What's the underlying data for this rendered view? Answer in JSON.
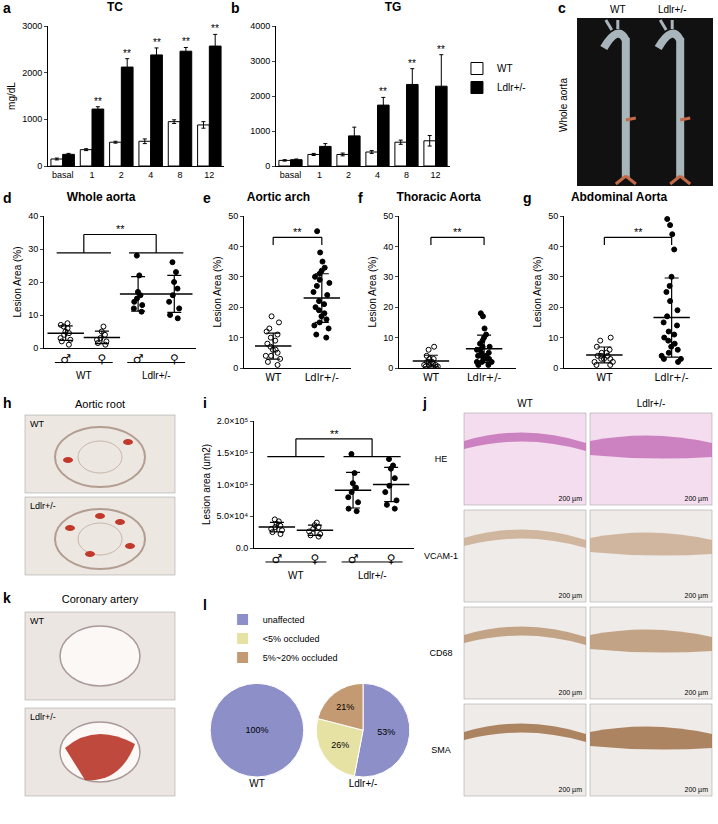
{
  "chart_data": [
    {
      "panel": "a",
      "type": "bar",
      "title": "TC",
      "y_label": "mg/dL",
      "grid": false,
      "categories": [
        "basal",
        "1",
        "2",
        "4",
        "8",
        "12"
      ],
      "ylim": [
        0,
        3000
      ],
      "yticks": [
        0,
        1000,
        2000,
        3000
      ],
      "series": [
        {
          "name": "WT",
          "color": "#ffffff",
          "values": [
            150,
            350,
            510,
            530,
            950,
            880
          ],
          "errors": [
            20,
            20,
            20,
            50,
            40,
            70
          ]
        },
        {
          "name": "Ldlr+/-",
          "color": "#000000",
          "values": [
            250,
            1220,
            2120,
            2380,
            2460,
            2570
          ],
          "errors": [
            20,
            50,
            180,
            150,
            80,
            250
          ]
        }
      ],
      "annotations": [
        {
          "category": "1",
          "series": "Ldlr+/-",
          "text": "**"
        },
        {
          "category": "2",
          "series": "Ldlr+/-",
          "text": "**"
        },
        {
          "category": "4",
          "series": "Ldlr+/-",
          "text": "**"
        },
        {
          "category": "8",
          "series": "Ldlr+/-",
          "text": "**"
        },
        {
          "category": "12",
          "series": "Ldlr+/-",
          "text": "**"
        }
      ]
    },
    {
      "panel": "b",
      "type": "bar",
      "title": "TG",
      "legend": "right",
      "grid": false,
      "categories": [
        "basal",
        "1",
        "2",
        "4",
        "8",
        "12"
      ],
      "ylim": [
        0,
        4000
      ],
      "yticks": [
        0,
        1000,
        2000,
        3000,
        4000
      ],
      "series": [
        {
          "name": "WT",
          "color": "#ffffff",
          "values": [
            160,
            330,
            330,
            400,
            680,
            720
          ],
          "errors": [
            20,
            30,
            40,
            40,
            60,
            150
          ]
        },
        {
          "name": "Ldlr+/-",
          "color": "#000000",
          "values": [
            180,
            560,
            860,
            1740,
            2330,
            2280
          ],
          "errors": [
            20,
            80,
            250,
            220,
            450,
            900
          ]
        }
      ],
      "annotations": [
        {
          "category": "4",
          "series": "Ldlr+/-",
          "text": "**"
        },
        {
          "category": "8",
          "series": "Ldlr+/-",
          "text": "**"
        },
        {
          "category": "12",
          "series": "Ldlr+/-",
          "text": "**"
        }
      ]
    },
    {
      "panel": "d",
      "type": "scatter",
      "title": "Whole aorta",
      "y_label": "Lesion Area (%)",
      "grid": false,
      "ylim": [
        0,
        40
      ],
      "yticks": [
        0,
        10,
        20,
        30,
        40
      ],
      "series": [
        {
          "name": "WT",
          "sex": "♂",
          "marker": "open",
          "color": "#000000",
          "values": [
            7.5,
            7,
            6.5,
            6,
            5,
            4.5,
            4,
            3,
            2.5,
            2,
            1
          ],
          "mean": 4.5,
          "sd": 2.2
        },
        {
          "name": "WT",
          "sex": "♀",
          "marker": "open",
          "color": "#000000",
          "values": [
            6.5,
            5,
            4,
            3,
            2.5,
            2,
            1.5,
            1
          ],
          "mean": 3.2,
          "sd": 1.9
        },
        {
          "name": "Ldlr+/-",
          "sex": "♂",
          "marker": "filled",
          "color": "#000000",
          "values": [
            28,
            22,
            17,
            16,
            15,
            14,
            13,
            12,
            11
          ],
          "mean": 16.4,
          "sd": 5.2
        },
        {
          "name": "Ldlr+/-",
          "sex": "♀",
          "marker": "filled",
          "color": "#000000",
          "values": [
            26,
            23,
            20,
            18,
            16,
            14,
            12,
            10,
            9
          ],
          "mean": 16.4,
          "sd": 5.6
        }
      ],
      "significance": {
        "label": "**",
        "between": [
          [
            0,
            1
          ],
          [
            2,
            3
          ]
        ]
      }
    },
    {
      "panel": "e",
      "type": "scatter",
      "title": "Aortic arch",
      "y_label": "Lesion Area (%)",
      "grid": false,
      "ylim": [
        0,
        50
      ],
      "yticks": [
        0,
        10,
        20,
        30,
        40,
        50
      ],
      "series": [
        {
          "name": "WT",
          "marker": "open",
          "color": "#000000",
          "values": [
            17,
            15,
            13,
            12,
            11,
            10,
            9,
            8,
            7,
            6,
            6,
            5,
            4,
            4,
            3,
            2,
            1
          ],
          "mean": 7.2,
          "sd": 4.3
        },
        {
          "name": "Ldlr+/-",
          "marker": "filled",
          "color": "#000000",
          "values": [
            45,
            38,
            35,
            33,
            32,
            31,
            30,
            29,
            28,
            27,
            25,
            24,
            22,
            21,
            20,
            19,
            18,
            17,
            16,
            15,
            14,
            13,
            11,
            10
          ],
          "mean": 23,
          "sd": 8
        }
      ],
      "significance": {
        "label": "**",
        "between": [
          [
            0
          ],
          [
            1
          ]
        ]
      }
    },
    {
      "panel": "f",
      "type": "scatter",
      "title": "Thoracic Aorta",
      "y_label": "Lesion Area (%)",
      "grid": false,
      "ylim": [
        0,
        50
      ],
      "yticks": [
        0,
        10,
        20,
        30,
        40,
        50
      ],
      "series": [
        {
          "name": "WT",
          "marker": "open",
          "color": "#000000",
          "values": [
            7,
            6,
            4,
            3,
            3,
            2,
            2,
            2,
            1.5,
            1.5,
            1,
            1,
            1,
            0.5,
            0.5,
            0.3
          ],
          "mean": 2.3,
          "sd": 1.9
        },
        {
          "name": "Ldlr+/-",
          "marker": "filled",
          "color": "#000000",
          "values": [
            18,
            17,
            13,
            11,
            10,
            9,
            8,
            7,
            7,
            6,
            6,
            5,
            5,
            4,
            4,
            4,
            3,
            3,
            3,
            2,
            2,
            2,
            1,
            1
          ],
          "mean": 6.3,
          "sd": 4.5
        }
      ],
      "significance": {
        "label": "**",
        "between": [
          [
            0
          ],
          [
            1
          ]
        ]
      }
    },
    {
      "panel": "g",
      "type": "scatter",
      "title": "Abdominal Aorta",
      "y_label": "Lesion Area (%)",
      "grid": false,
      "ylim": [
        0,
        50
      ],
      "yticks": [
        0,
        10,
        20,
        30,
        40,
        50
      ],
      "series": [
        {
          "name": "WT",
          "marker": "open",
          "color": "#000000",
          "values": [
            10,
            9,
            7,
            6,
            5,
            5,
            4,
            4,
            4,
            3,
            3,
            3,
            2,
            2,
            1,
            1
          ],
          "mean": 4.3,
          "sd": 2.6
        },
        {
          "name": "Ldlr+/-",
          "marker": "filled",
          "color": "#000000",
          "values": [
            49,
            47,
            44,
            39,
            30,
            27,
            25,
            22,
            19,
            17,
            15,
            14,
            12,
            11,
            10,
            9,
            8,
            7,
            6,
            5,
            4,
            3,
            3,
            2
          ],
          "mean": 16.6,
          "sd": 13
        }
      ],
      "significance": {
        "label": "**",
        "between": [
          [
            0
          ],
          [
            1
          ]
        ]
      }
    },
    {
      "panel": "i",
      "type": "scatter",
      "y_label": "Lesion area (um2)",
      "grid": false,
      "ylim": [
        0,
        200000
      ],
      "yticks": [
        {
          "value": 0,
          "label": "0.0"
        },
        {
          "value": 50000,
          "label": "5.0×10⁴"
        },
        {
          "value": 100000,
          "label": "1.0×10⁵"
        },
        {
          "value": 150000,
          "label": "1.5×10⁵"
        },
        {
          "value": 200000,
          "label": "2.0×10⁵"
        }
      ],
      "series": [
        {
          "name": "WT",
          "sex": "♂",
          "marker": "open",
          "color": "#000000",
          "values": [
            45000,
            42000,
            38000,
            35000,
            33000,
            30000,
            28000,
            25000,
            22000
          ],
          "mean": 33000,
          "sd": 7500
        },
        {
          "name": "WT",
          "sex": "♀",
          "marker": "open",
          "color": "#000000",
          "values": [
            40000,
            36000,
            33000,
            30000,
            26000,
            22000,
            20000,
            18000
          ],
          "mean": 28000,
          "sd": 8000
        },
        {
          "name": "Ldlr+/-",
          "sex": "♂",
          "marker": "filled",
          "color": "#000000",
          "values": [
            148000,
            118000,
            102000,
            95000,
            88000,
            80000,
            72000,
            62000,
            58000
          ],
          "mean": 91000,
          "sd": 28000
        },
        {
          "name": "Ldlr+/-",
          "sex": "♀",
          "marker": "filled",
          "color": "#000000",
          "values": [
            140000,
            130000,
            125000,
            110000,
            98000,
            88000,
            75000,
            68000,
            62000
          ],
          "mean": 100000,
          "sd": 27000
        }
      ],
      "significance": {
        "label": "**",
        "between": [
          [
            0,
            1
          ],
          [
            2,
            3
          ]
        ]
      }
    },
    {
      "panel": "l",
      "type": "pie",
      "legend": "top left",
      "pies": [
        {
          "name": "WT",
          "labels": [
            "unaffected"
          ],
          "values": [
            100
          ],
          "value_labels": [
            "100%"
          ],
          "colors": [
            "#8c8fc8"
          ]
        },
        {
          "name": "Ldlr+/-",
          "labels": [
            "unaffected",
            "<5% occluded",
            "5%~20% occluded"
          ],
          "values": [
            53,
            26,
            21
          ],
          "value_labels": [
            "53%",
            "26%",
            "21%"
          ],
          "colors": [
            "#8c8fc8",
            "#e6e2a4",
            "#c49a72"
          ]
        }
      ]
    }
  ],
  "image_panels": [
    {
      "panel": "c",
      "title": "Whole aorta",
      "columns": [
        "WT",
        "Ldlr+/-"
      ]
    },
    {
      "panel": "h",
      "title": "Aortic root",
      "rows": [
        "WT",
        "Ldlr+/-"
      ]
    },
    {
      "panel": "j",
      "columns": [
        "WT",
        "Ldlr+/-"
      ],
      "rows": [
        "HE",
        "VCAM-1",
        "CD68",
        "SMA"
      ],
      "scale_bar": "200 µm"
    },
    {
      "panel": "k",
      "title": "Coronary artery",
      "rows": [
        "WT",
        "Ldlr+/-"
      ]
    }
  ]
}
